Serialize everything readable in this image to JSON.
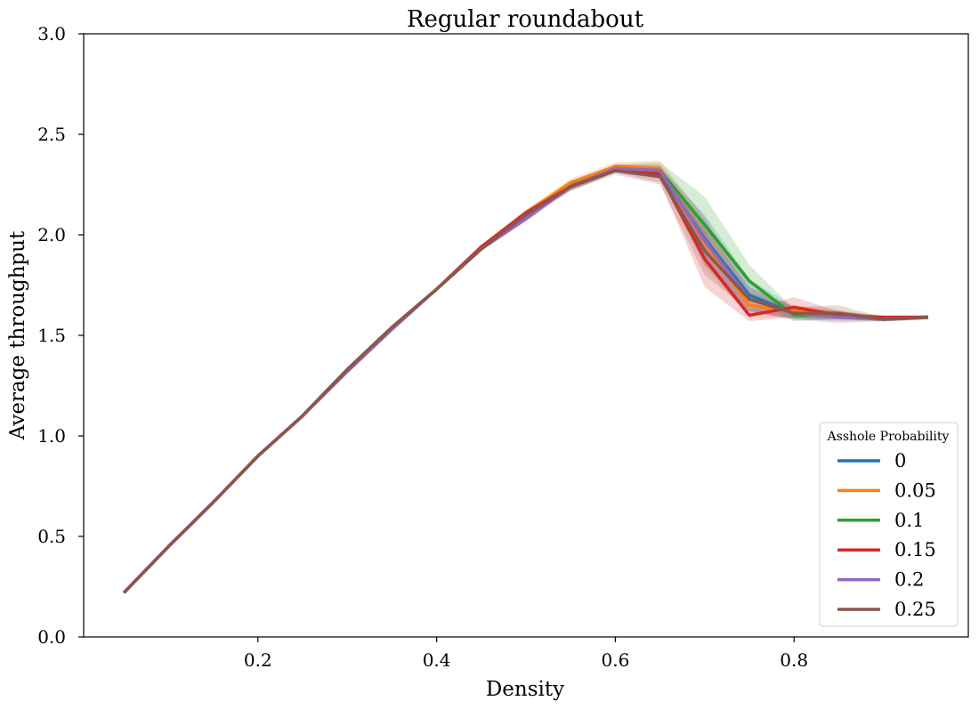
{
  "chart_data": {
    "type": "line",
    "title": "Regular roundabout",
    "xlabel": "Density",
    "ylabel": "Average throughput",
    "xlim": [
      0.005,
      0.995
    ],
    "ylim": [
      0,
      3
    ],
    "xticks": [
      0.2,
      0.4,
      0.6,
      0.8
    ],
    "xtick_labels": [
      "0.2",
      "0.4",
      "0.6",
      "0.8"
    ],
    "yticks": [
      0,
      0.5,
      1,
      1.5,
      2,
      2.5,
      3
    ],
    "ytick_labels": [
      "0.0",
      "0.5",
      "1.0",
      "1.5",
      "2.0",
      "2.5",
      "3.0"
    ],
    "grid": false,
    "legend": {
      "title": "Asshole Probability",
      "position": "lower-right"
    },
    "x": [
      0.05,
      0.1,
      0.15,
      0.2,
      0.25,
      0.3,
      0.35,
      0.4,
      0.45,
      0.5,
      0.55,
      0.6,
      0.65,
      0.7,
      0.75,
      0.8,
      0.85,
      0.9,
      0.95
    ],
    "series": [
      {
        "name": "0",
        "color": "#1f77b4",
        "values": [
          0.22,
          0.45,
          0.67,
          0.9,
          1.1,
          1.33,
          1.54,
          1.73,
          1.93,
          2.1,
          2.25,
          2.33,
          2.31,
          1.98,
          1.7,
          1.61,
          1.6,
          1.58,
          1.59
        ],
        "band": [
          0.005,
          0.005,
          0.005,
          0.005,
          0.005,
          0.01,
          0.01,
          0.01,
          0.01,
          0.015,
          0.02,
          0.02,
          0.03,
          0.12,
          0.08,
          0.03,
          0.02,
          0.01,
          0.01
        ]
      },
      {
        "name": "0.05",
        "color": "#ff7f0e",
        "values": [
          0.22,
          0.45,
          0.67,
          0.9,
          1.1,
          1.33,
          1.54,
          1.73,
          1.94,
          2.11,
          2.26,
          2.34,
          2.33,
          1.96,
          1.65,
          1.62,
          1.61,
          1.58,
          1.59
        ],
        "band": [
          0.005,
          0.005,
          0.005,
          0.005,
          0.005,
          0.01,
          0.01,
          0.01,
          0.01,
          0.015,
          0.02,
          0.02,
          0.04,
          0.12,
          0.06,
          0.03,
          0.02,
          0.01,
          0.01
        ]
      },
      {
        "name": "0.1",
        "color": "#2ca02c",
        "values": [
          0.22,
          0.45,
          0.67,
          0.9,
          1.1,
          1.33,
          1.54,
          1.73,
          1.93,
          2.1,
          2.24,
          2.33,
          2.32,
          2.05,
          1.77,
          1.6,
          1.6,
          1.58,
          1.59
        ],
        "band": [
          0.005,
          0.005,
          0.005,
          0.005,
          0.005,
          0.01,
          0.01,
          0.01,
          0.01,
          0.015,
          0.02,
          0.02,
          0.04,
          0.14,
          0.08,
          0.03,
          0.02,
          0.01,
          0.01
        ]
      },
      {
        "name": "0.15",
        "color": "#d62728",
        "values": [
          0.22,
          0.45,
          0.67,
          0.9,
          1.1,
          1.33,
          1.54,
          1.73,
          1.94,
          2.11,
          2.24,
          2.33,
          2.3,
          1.88,
          1.6,
          1.64,
          1.6,
          1.59,
          1.59
        ],
        "band": [
          0.005,
          0.005,
          0.005,
          0.005,
          0.005,
          0.01,
          0.01,
          0.01,
          0.01,
          0.015,
          0.02,
          0.02,
          0.04,
          0.14,
          0.03,
          0.05,
          0.02,
          0.01,
          0.01
        ]
      },
      {
        "name": "0.2",
        "color": "#9467bd",
        "values": [
          0.22,
          0.45,
          0.67,
          0.9,
          1.1,
          1.32,
          1.53,
          1.73,
          1.93,
          2.08,
          2.24,
          2.33,
          2.32,
          1.97,
          1.68,
          1.61,
          1.59,
          1.58,
          1.59
        ],
        "band": [
          0.005,
          0.005,
          0.005,
          0.005,
          0.005,
          0.01,
          0.01,
          0.01,
          0.01,
          0.015,
          0.02,
          0.02,
          0.03,
          0.12,
          0.06,
          0.03,
          0.03,
          0.01,
          0.01
        ]
      },
      {
        "name": "0.25",
        "color": "#8c564b",
        "values": [
          0.22,
          0.45,
          0.67,
          0.9,
          1.1,
          1.33,
          1.54,
          1.73,
          1.93,
          2.1,
          2.24,
          2.32,
          2.29,
          1.92,
          1.68,
          1.61,
          1.61,
          1.58,
          1.59
        ],
        "band": [
          0.005,
          0.005,
          0.005,
          0.005,
          0.005,
          0.01,
          0.01,
          0.01,
          0.01,
          0.015,
          0.02,
          0.02,
          0.04,
          0.12,
          0.06,
          0.03,
          0.04,
          0.01,
          0.01
        ]
      }
    ]
  }
}
